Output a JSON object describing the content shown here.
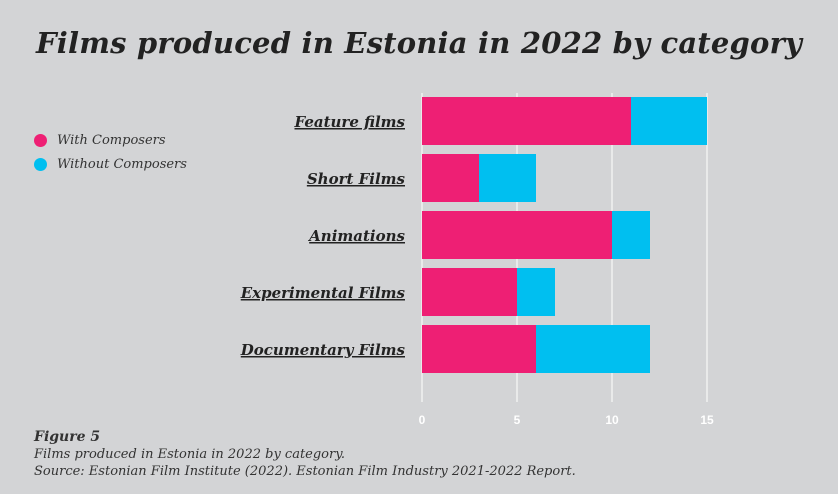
{
  "title": "Films produced in Estonia in 2022 by category",
  "legend": [
    {
      "label": "With Composers",
      "color": "#ee1f74"
    },
    {
      "label": "Without Composers",
      "color": "#00bff0"
    }
  ],
  "caption": {
    "figure": "Figure 5",
    "text": "Films produced in Estonia in 2022 by category.",
    "source": "Source: Estonian Film Institute (2022). Estonian Film Industry 2021-2022 Report."
  },
  "chart_data": {
    "type": "bar",
    "orientation": "horizontal",
    "stacked": true,
    "title": "Films produced in Estonia in 2022 by category",
    "categories": [
      "Feature films",
      "Short Films",
      "Animations",
      "Experimental Films",
      "Documentary Films"
    ],
    "series": [
      {
        "name": "With Composers",
        "color": "#ee1f74",
        "values": [
          11,
          3,
          10,
          5,
          6
        ]
      },
      {
        "name": "Without Composers",
        "color": "#00bff0",
        "values": [
          4,
          3,
          2,
          2,
          6
        ]
      }
    ],
    "xlim": [
      0,
      15
    ],
    "xticks": [
      "0",
      "5",
      "10",
      "15"
    ],
    "grid": true,
    "legend_position": "left"
  }
}
